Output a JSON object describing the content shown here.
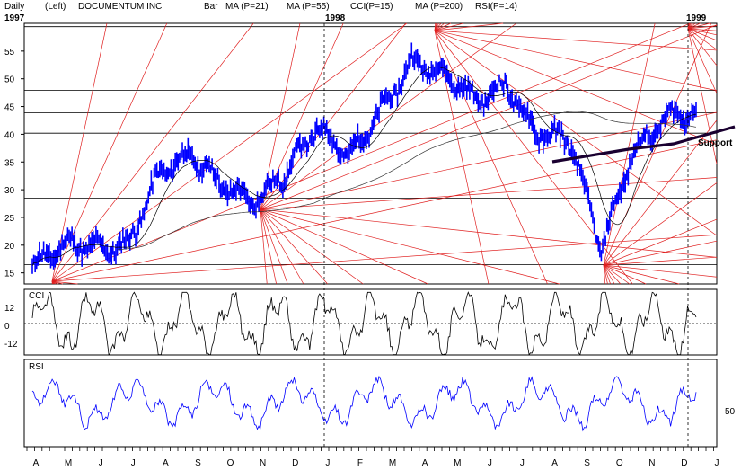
{
  "header": {
    "period": "Daily",
    "scale": "(Left)",
    "title": "DOCUMENTUM INC",
    "legend": [
      {
        "label": "Bar",
        "color": "#0000ff"
      },
      {
        "label": "MA (P=21)",
        "color": "#000000"
      },
      {
        "label": "MA (P=55)",
        "color": "#ff0000"
      },
      {
        "label": "CCI(P=15)",
        "color": "#000000"
      },
      {
        "label": "MA (P=200)",
        "color": "#000000"
      },
      {
        "label": "RSI(P=14)",
        "color": "#0000ff"
      }
    ]
  },
  "year_labels": [
    "1997",
    "1998",
    "1999"
  ],
  "chart_data": [
    {
      "type": "bar",
      "title": "DOCUMENTUM INC",
      "ylim": [
        13,
        60
      ],
      "y_ticks": [
        15,
        20,
        25,
        30,
        35,
        40,
        45,
        50,
        55
      ],
      "horizontal_levels": [
        16.5,
        28.5,
        40.2,
        43.9,
        47.9,
        59.4
      ],
      "support_label": "Support",
      "x": [
        "A",
        "M",
        "J",
        "J",
        "A",
        "S",
        "O",
        "N",
        "D",
        "J",
        "F",
        "M",
        "A",
        "M",
        "J",
        "J",
        "A",
        "S",
        "O",
        "N",
        "D",
        "J"
      ],
      "close_approx": [
        16,
        19,
        19.5,
        21,
        33,
        35,
        31,
        29,
        33,
        40,
        36,
        45,
        53,
        50,
        46,
        50,
        40,
        38,
        19,
        38,
        43,
        43
      ],
      "colors": {
        "bars": "#0000ff",
        "fan_lines": "#e02020",
        "ma": "#000000",
        "support": "#1a0030"
      }
    },
    {
      "type": "line",
      "title": "CCI",
      "y_ticks": [
        "12",
        "0",
        "-12"
      ],
      "ylim": [
        -18,
        18
      ]
    },
    {
      "type": "line",
      "title": "RSI",
      "y_ticks": [
        "50"
      ],
      "ylim": [
        15,
        95
      ]
    }
  ],
  "x_axis": {
    "months": [
      "A",
      "M",
      "J",
      "J",
      "A",
      "S",
      "O",
      "N",
      "D",
      "J",
      "F",
      "M",
      "A",
      "M",
      "J",
      "J",
      "A",
      "S",
      "O",
      "N",
      "D",
      "J"
    ]
  }
}
